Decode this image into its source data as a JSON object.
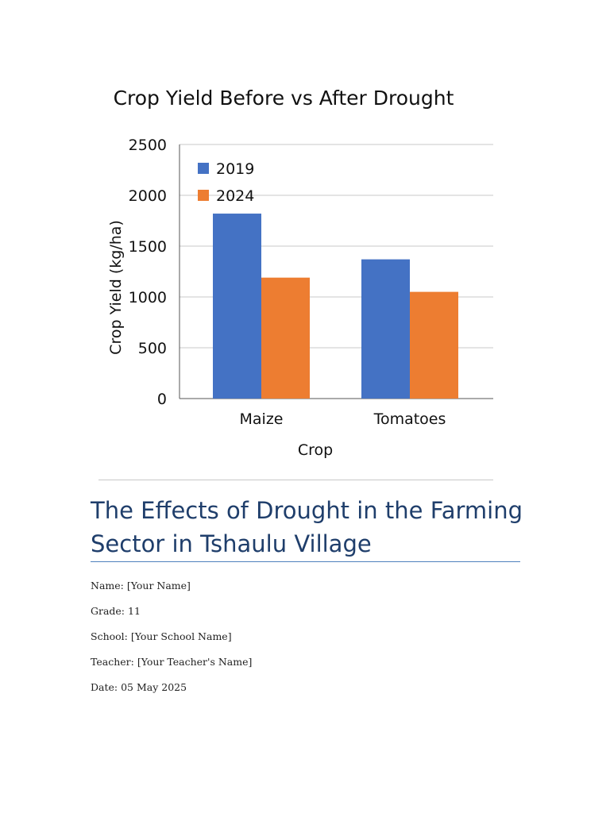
{
  "chart_data": {
    "type": "bar",
    "title": "Crop Yield Before vs After Drought",
    "xlabel": "Crop",
    "ylabel": "Crop Yield (kg/ha)",
    "categories": [
      "Maize",
      "Tomatoes"
    ],
    "series": [
      {
        "name": "2019",
        "values": [
          1820,
          1370
        ],
        "color": "#4472c4"
      },
      {
        "name": "2024",
        "values": [
          1190,
          1050
        ],
        "color": "#ed7d31"
      }
    ],
    "ylim": [
      0,
      2500
    ],
    "yticks": [
      0,
      500,
      1000,
      1500,
      2000,
      2500
    ],
    "grid": true,
    "legend": "top-left"
  },
  "document": {
    "title": "The Effects of Drought in the Farming Sector in Tshaulu Village",
    "fields": [
      "Name: [Your Name]",
      "Grade: 11",
      "School: [Your School Name]",
      "Teacher: [Your Teacher's Name]",
      "Date: 05 May 2025"
    ]
  }
}
